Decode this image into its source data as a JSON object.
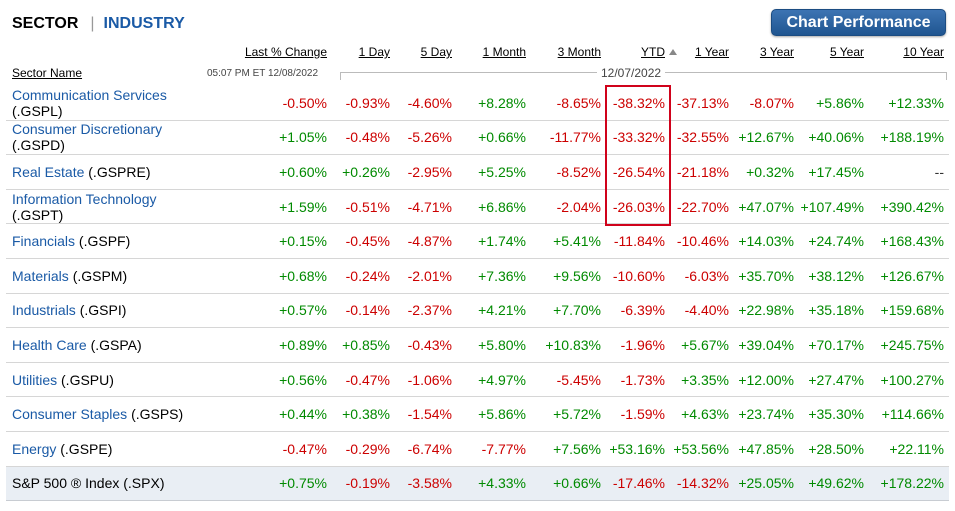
{
  "tabs": {
    "sector": "SECTOR",
    "separator": "|",
    "industry": "INDUSTRY"
  },
  "chart_button": "Chart Performance",
  "columns": [
    "Last % Change",
    "1 Day",
    "5 Day",
    "1 Month",
    "3 Month",
    "YTD",
    "1 Year",
    "3 Year",
    "5 Year",
    "10 Year"
  ],
  "sector_name_header": "Sector Name",
  "timestamp": "05:07 PM ET 12/08/2022",
  "range_date": "12/07/2022",
  "sort_column": "YTD",
  "rows": [
    {
      "name": "Communication Services",
      "ticker": "(.GSPL)",
      "wrap": true,
      "values": [
        "-0.50%",
        "-0.93%",
        "-4.60%",
        "+8.28%",
        "-8.65%",
        "-38.32%",
        "-37.13%",
        "-8.07%",
        "+5.86%",
        "+12.33%"
      ]
    },
    {
      "name": "Consumer Discretionary",
      "ticker": "(.GSPD)",
      "wrap": true,
      "values": [
        "+1.05%",
        "-0.48%",
        "-5.26%",
        "+0.66%",
        "-11.77%",
        "-33.32%",
        "-32.55%",
        "+12.67%",
        "+40.06%",
        "+188.19%"
      ]
    },
    {
      "name": "Real Estate",
      "ticker": "(.GSPRE)",
      "wrap": false,
      "values": [
        "+0.60%",
        "+0.26%",
        "-2.95%",
        "+5.25%",
        "-8.52%",
        "-26.54%",
        "-21.18%",
        "+0.32%",
        "+17.45%",
        "--"
      ]
    },
    {
      "name": "Information Technology",
      "ticker": "(.GSPT)",
      "wrap": true,
      "values": [
        "+1.59%",
        "-0.51%",
        "-4.71%",
        "+6.86%",
        "-2.04%",
        "-26.03%",
        "-22.70%",
        "+47.07%",
        "+107.49%",
        "+390.42%"
      ]
    },
    {
      "name": "Financials",
      "ticker": "(.GSPF)",
      "wrap": false,
      "values": [
        "+0.15%",
        "-0.45%",
        "-4.87%",
        "+1.74%",
        "+5.41%",
        "-11.84%",
        "-10.46%",
        "+14.03%",
        "+24.74%",
        "+168.43%"
      ]
    },
    {
      "name": "Materials",
      "ticker": "(.GSPM)",
      "wrap": false,
      "values": [
        "+0.68%",
        "-0.24%",
        "-2.01%",
        "+7.36%",
        "+9.56%",
        "-10.60%",
        "-6.03%",
        "+35.70%",
        "+38.12%",
        "+126.67%"
      ]
    },
    {
      "name": "Industrials",
      "ticker": "(.GSPI)",
      "wrap": false,
      "values": [
        "+0.57%",
        "-0.14%",
        "-2.37%",
        "+4.21%",
        "+7.70%",
        "-6.39%",
        "-4.40%",
        "+22.98%",
        "+35.18%",
        "+159.68%"
      ]
    },
    {
      "name": "Health Care",
      "ticker": "(.GSPA)",
      "wrap": false,
      "values": [
        "+0.89%",
        "+0.85%",
        "-0.43%",
        "+5.80%",
        "+10.83%",
        "-1.96%",
        "+5.67%",
        "+39.04%",
        "+70.17%",
        "+245.75%"
      ]
    },
    {
      "name": "Utilities",
      "ticker": "(.GSPU)",
      "wrap": false,
      "values": [
        "+0.56%",
        "-0.47%",
        "-1.06%",
        "+4.97%",
        "-5.45%",
        "-1.73%",
        "+3.35%",
        "+12.00%",
        "+27.47%",
        "+100.27%"
      ]
    },
    {
      "name": "Consumer Staples",
      "ticker": "(.GSPS)",
      "wrap": false,
      "values": [
        "+0.44%",
        "+0.38%",
        "-1.54%",
        "+5.86%",
        "+5.72%",
        "-1.59%",
        "+4.63%",
        "+23.74%",
        "+35.30%",
        "+114.66%"
      ]
    },
    {
      "name": "Energy",
      "ticker": "(.GSPE)",
      "wrap": false,
      "values": [
        "-0.47%",
        "-0.29%",
        "-6.74%",
        "-7.77%",
        "+7.56%",
        "+53.16%",
        "+53.56%",
        "+47.85%",
        "+28.50%",
        "+22.11%"
      ]
    },
    {
      "name": "S&P 500 ® Index",
      "ticker": "(.SPX)",
      "wrap": false,
      "index": true,
      "values": [
        "+0.75%",
        "-0.19%",
        "-3.58%",
        "+4.33%",
        "+0.66%",
        "-17.46%",
        "-14.32%",
        "+25.05%",
        "+49.62%",
        "+178.22%"
      ]
    }
  ],
  "colors": {
    "positive": "#008a00",
    "negative": "#cc0000",
    "link": "#1a5aa6",
    "highlight_box": "#d0021b"
  }
}
